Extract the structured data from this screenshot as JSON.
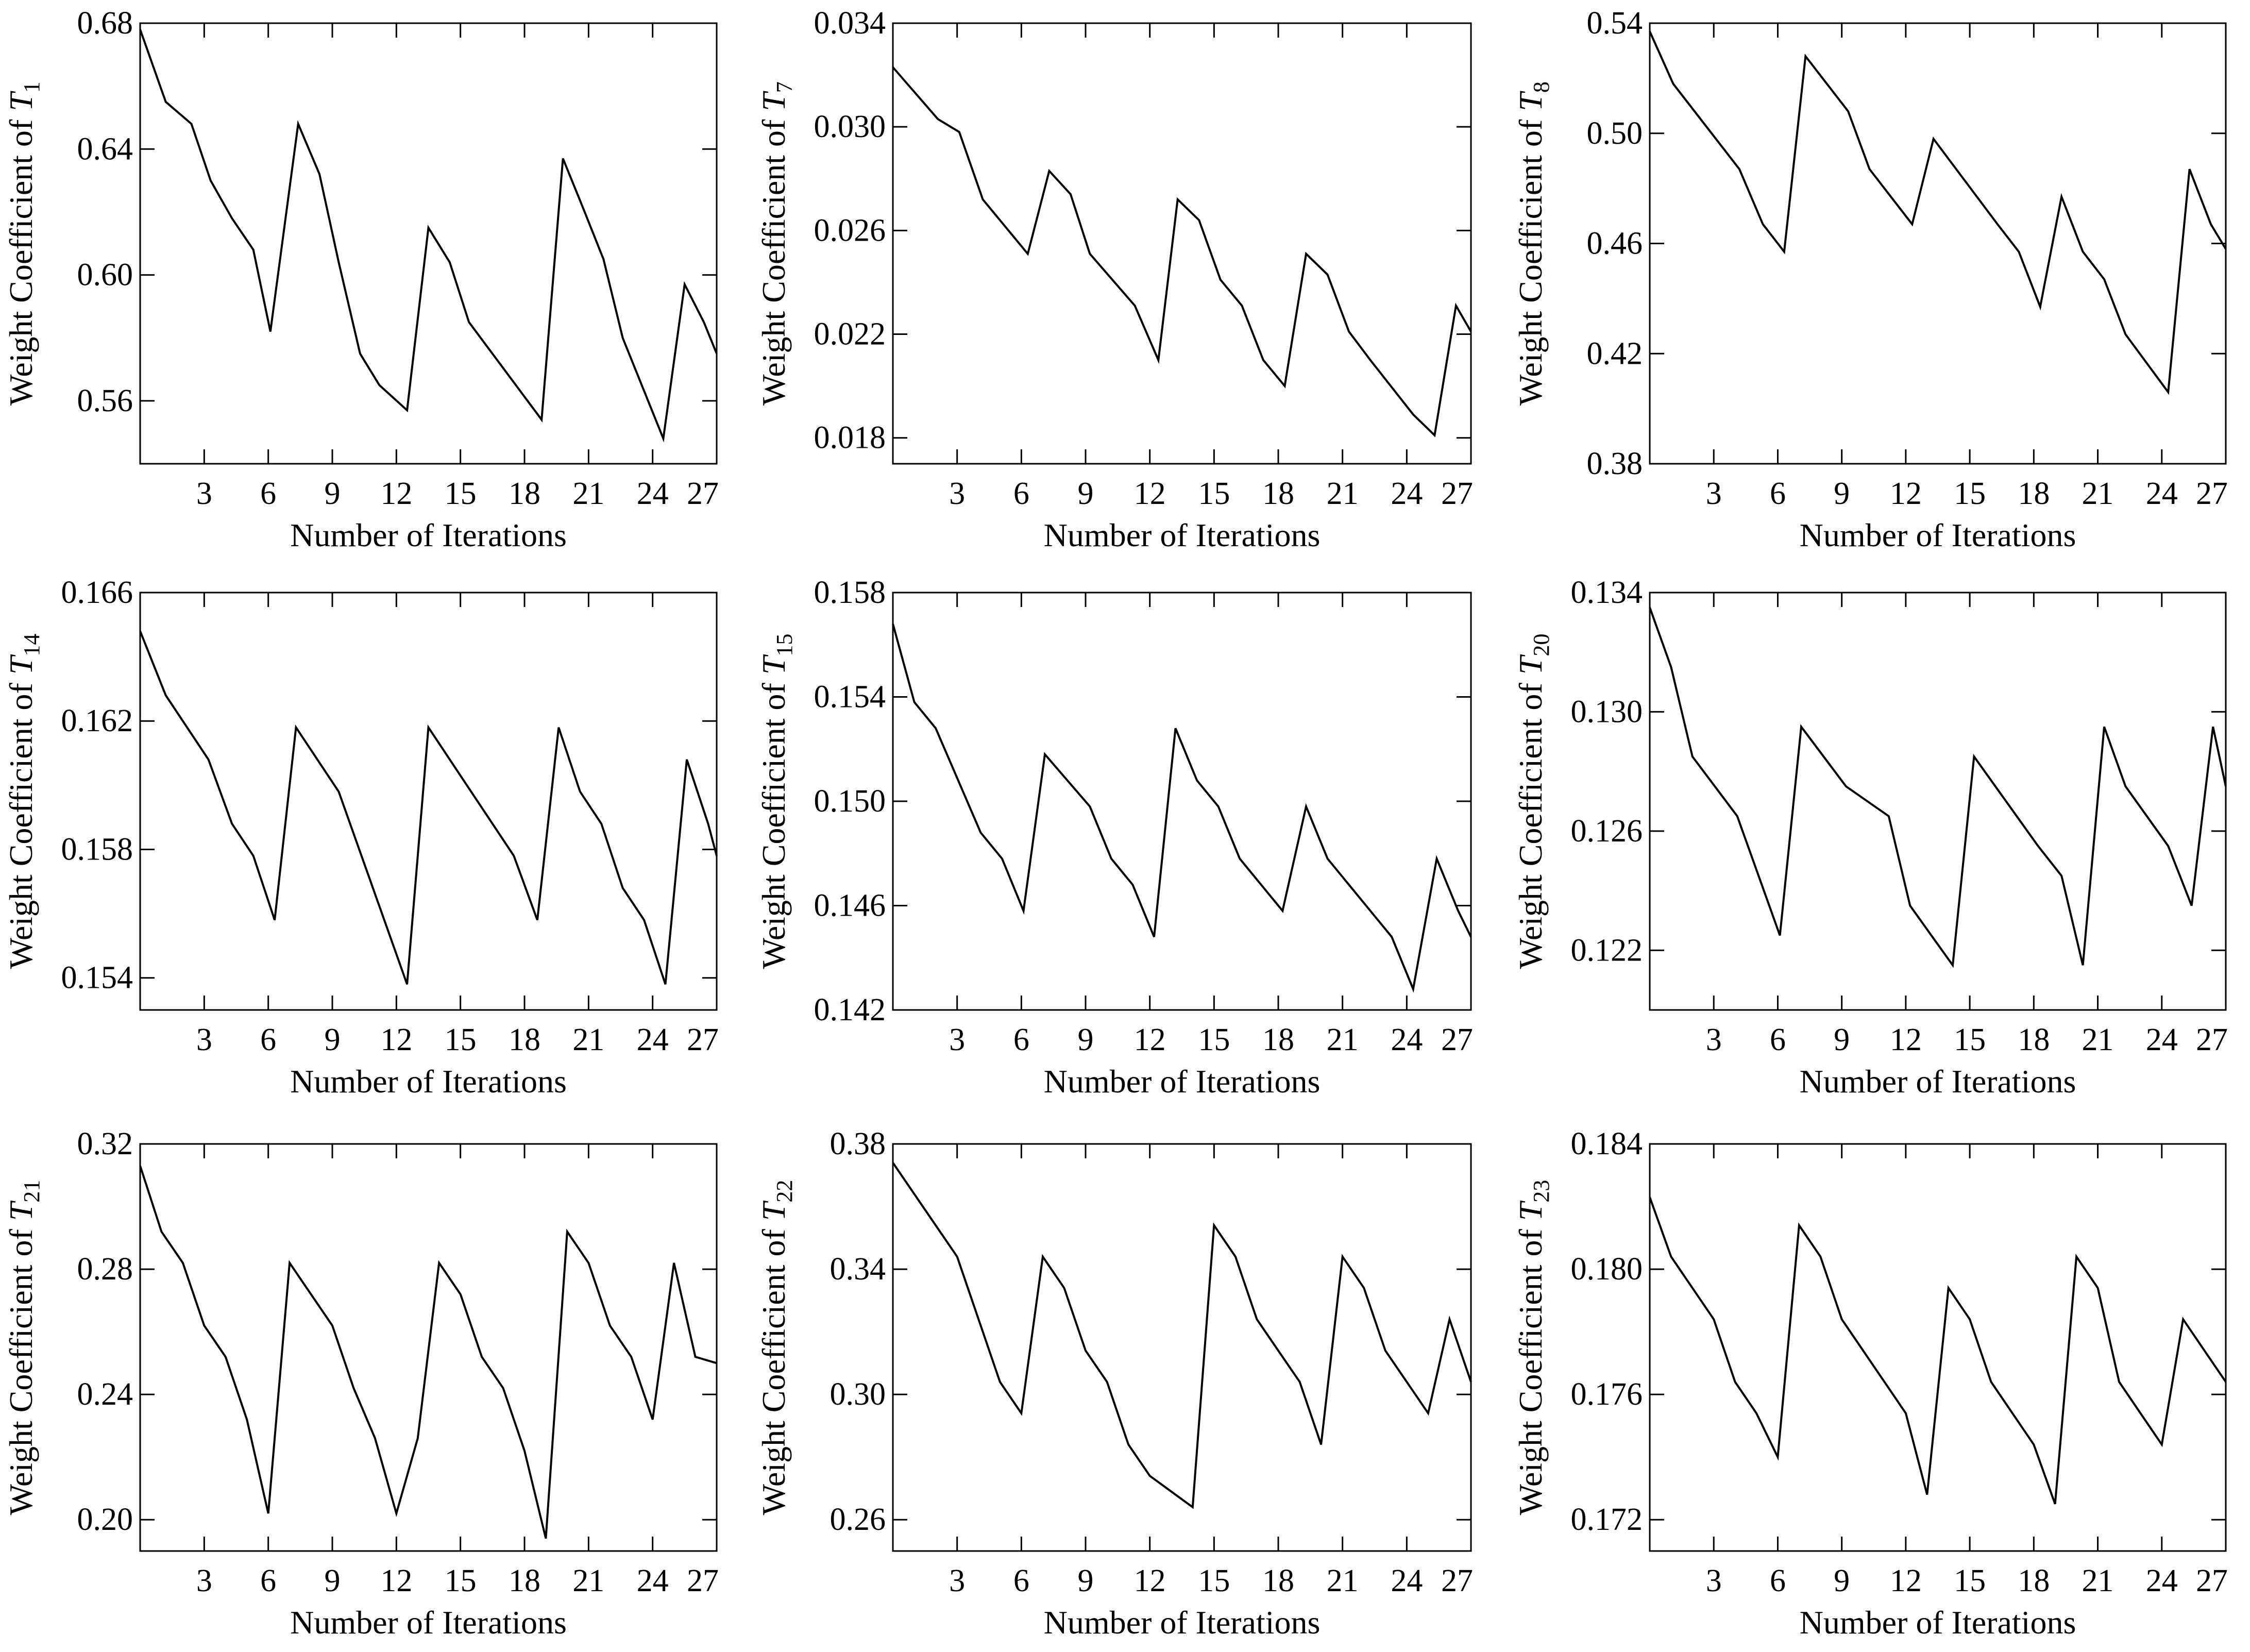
{
  "chart_data": [
    {
      "type": "line",
      "title": "",
      "xlabel": "Number of Iterations",
      "ylabel": "Weight Coefficient of ",
      "ylabel_var": "T",
      "ylabel_sub": "1",
      "xlim": [
        0,
        27
      ],
      "ylim": [
        0.54,
        0.68
      ],
      "x_ticks": [
        3,
        6,
        9,
        12,
        15,
        18,
        21,
        24,
        27
      ],
      "y_ticks": [
        0.56,
        0.6,
        0.64,
        0.68
      ],
      "y_tick_labels": [
        "0.56",
        "0.60",
        "0.64",
        "0.68"
      ],
      "x": [
        0,
        1.2,
        2.4,
        3.3,
        4.3,
        5.3,
        6.1,
        7.4,
        8.4,
        9.3,
        10.3,
        11.2,
        12.5,
        13.5,
        14.5,
        15.4,
        18.8,
        19.8,
        20.7,
        21.7,
        22.6,
        24.5,
        25.5,
        26.4,
        27
      ],
      "series": [
        {
          "name": "T1",
          "values": [
            0.678,
            0.655,
            0.648,
            0.63,
            0.618,
            0.608,
            0.582,
            0.648,
            0.632,
            0.604,
            0.575,
            0.565,
            0.557,
            0.615,
            0.604,
            0.585,
            0.554,
            0.637,
            0.622,
            0.605,
            0.58,
            0.548,
            0.597,
            0.585,
            0.575
          ]
        }
      ]
    },
    {
      "type": "line",
      "title": "",
      "xlabel": "Number of Iterations",
      "ylabel": "Weight Coefficient of ",
      "ylabel_var": "T",
      "ylabel_sub": "7",
      "xlim": [
        0,
        27
      ],
      "ylim": [
        0.017,
        0.034
      ],
      "x_ticks": [
        3,
        6,
        9,
        12,
        15,
        18,
        21,
        24,
        27
      ],
      "y_ticks": [
        0.018,
        0.022,
        0.026,
        0.03,
        0.034
      ],
      "y_tick_labels": [
        "0.018",
        "0.022",
        "0.026",
        "0.030",
        "0.034"
      ],
      "x": [
        0,
        2.1,
        3.1,
        4.2,
        6.3,
        7.3,
        8.3,
        9.2,
        11.3,
        12.4,
        13.3,
        14.3,
        15.3,
        16.3,
        17.3,
        18.3,
        19.3,
        20.3,
        21.3,
        22.3,
        24.3,
        25.3,
        26.3,
        27
      ],
      "series": [
        {
          "name": "T7",
          "values": [
            0.0323,
            0.0303,
            0.0298,
            0.0272,
            0.0251,
            0.0283,
            0.0274,
            0.0251,
            0.0231,
            0.021,
            0.0272,
            0.0264,
            0.0241,
            0.0231,
            0.021,
            0.02,
            0.0251,
            0.0243,
            0.0221,
            0.021,
            0.0189,
            0.0181,
            0.0231,
            0.0221
          ]
        }
      ]
    },
    {
      "type": "line",
      "title": "",
      "xlabel": "Number of Iterations",
      "ylabel": "Weight Coefficient of ",
      "ylabel_var": "T",
      "ylabel_sub": "8",
      "xlim": [
        0,
        27
      ],
      "ylim": [
        0.38,
        0.54
      ],
      "x_ticks": [
        3,
        6,
        9,
        12,
        15,
        18,
        21,
        24,
        27
      ],
      "y_ticks": [
        0.38,
        0.42,
        0.46,
        0.5,
        0.54
      ],
      "y_tick_labels": [
        "0.38",
        "0.42",
        "0.46",
        "0.50",
        "0.54"
      ],
      "x": [
        0,
        1.1,
        4.2,
        5.3,
        6.3,
        7.3,
        9.3,
        10.3,
        12.3,
        13.3,
        16.3,
        17.3,
        18.3,
        19.3,
        20.3,
        21.3,
        22.3,
        24.3,
        25.3,
        26.3,
        27
      ],
      "series": [
        {
          "name": "T8",
          "values": [
            0.537,
            0.518,
            0.487,
            0.467,
            0.457,
            0.528,
            0.508,
            0.487,
            0.467,
            0.498,
            0.467,
            0.457,
            0.437,
            0.477,
            0.457,
            0.447,
            0.427,
            0.406,
            0.487,
            0.467,
            0.458
          ]
        }
      ]
    },
    {
      "type": "line",
      "title": "",
      "xlabel": "Number of Iterations",
      "ylabel": "Weight Coefficient of ",
      "ylabel_var": "T",
      "ylabel_sub": "14",
      "xlim": [
        0,
        27
      ],
      "ylim": [
        0.153,
        0.166
      ],
      "x_ticks": [
        3,
        6,
        9,
        12,
        15,
        18,
        21,
        24,
        27
      ],
      "y_ticks": [
        0.154,
        0.158,
        0.162,
        0.166
      ],
      "y_tick_labels": [
        "0.154",
        "0.158",
        "0.162",
        "0.166"
      ],
      "x": [
        0,
        1.2,
        3.2,
        4.3,
        5.3,
        6.3,
        7.3,
        9.3,
        12.5,
        13.5,
        17.5,
        18.6,
        19.6,
        20.6,
        21.6,
        22.6,
        23.6,
        24.6,
        25.6,
        26.6,
        27
      ],
      "series": [
        {
          "name": "T14",
          "values": [
            0.1648,
            0.1628,
            0.1608,
            0.1588,
            0.1578,
            0.1558,
            0.1618,
            0.1598,
            0.1538,
            0.1618,
            0.1578,
            0.1558,
            0.1618,
            0.1598,
            0.1588,
            0.1568,
            0.1558,
            0.1538,
            0.1608,
            0.1588,
            0.1578
          ]
        }
      ]
    },
    {
      "type": "line",
      "title": "",
      "xlabel": "Number of Iterations",
      "ylabel": "Weight Coefficient of ",
      "ylabel_var": "T",
      "ylabel_sub": "15",
      "xlim": [
        0,
        27
      ],
      "ylim": [
        0.142,
        0.158
      ],
      "x_ticks": [
        3,
        6,
        9,
        12,
        15,
        18,
        21,
        24,
        27
      ],
      "y_ticks": [
        0.142,
        0.146,
        0.15,
        0.154,
        0.158
      ],
      "y_tick_labels": [
        "0.142",
        "0.146",
        "0.150",
        "0.154",
        "0.158"
      ],
      "x": [
        0,
        1.0,
        2.0,
        4.1,
        5.1,
        6.1,
        7.1,
        9.2,
        10.2,
        11.2,
        12.2,
        13.2,
        14.2,
        15.2,
        16.2,
        18.2,
        19.3,
        20.3,
        23.3,
        24.3,
        25.4,
        26.4,
        27
      ],
      "series": [
        {
          "name": "T15",
          "values": [
            0.1568,
            0.1538,
            0.1528,
            0.1488,
            0.1478,
            0.1458,
            0.1518,
            0.1498,
            0.1478,
            0.1468,
            0.1448,
            0.1528,
            0.1508,
            0.1498,
            0.1478,
            0.1458,
            0.1498,
            0.1478,
            0.1448,
            0.1428,
            0.1478,
            0.1458,
            0.1448
          ]
        }
      ]
    },
    {
      "type": "line",
      "title": "",
      "xlabel": "Number of Iterations",
      "ylabel": "Weight Coefficient of ",
      "ylabel_var": "T",
      "ylabel_sub": "20",
      "xlim": [
        0,
        27
      ],
      "ylim": [
        0.12,
        0.134
      ],
      "x_ticks": [
        3,
        6,
        9,
        12,
        15,
        18,
        21,
        24,
        27
      ],
      "y_ticks": [
        0.122,
        0.126,
        0.13,
        0.134
      ],
      "y_tick_labels": [
        "0.122",
        "0.126",
        "0.130",
        "0.134"
      ],
      "x": [
        0,
        1.0,
        2.0,
        4.1,
        6.1,
        7.1,
        9.2,
        11.2,
        12.2,
        13.2,
        14.2,
        15.2,
        16.2,
        18.2,
        19.3,
        20.3,
        21.3,
        22.3,
        23.3,
        24.3,
        25.4,
        26.4,
        27
      ],
      "series": [
        {
          "name": "T20",
          "values": [
            0.1335,
            0.1315,
            0.1285,
            0.1265,
            0.1225,
            0.1295,
            0.1275,
            0.1265,
            0.1235,
            0.1225,
            0.1215,
            0.1285,
            0.1275,
            0.1255,
            0.1245,
            0.1215,
            0.1295,
            0.1275,
            0.1265,
            0.1255,
            0.1235,
            0.1295,
            0.1275
          ]
        }
      ]
    },
    {
      "type": "line",
      "title": "",
      "xlabel": "Number of Iterations",
      "ylabel": "Weight Coefficient of ",
      "ylabel_var": "T",
      "ylabel_sub": "21",
      "xlim": [
        0,
        27
      ],
      "ylim": [
        0.19,
        0.32
      ],
      "x_ticks": [
        3,
        6,
        9,
        12,
        15,
        18,
        21,
        24,
        27
      ],
      "y_ticks": [
        0.2,
        0.24,
        0.28,
        0.32
      ],
      "y_tick_labels": [
        "0.20",
        "0.24",
        "0.28",
        "0.32"
      ],
      "x": [
        0,
        1.0,
        2.0,
        3.0,
        4.0,
        5.0,
        6.0,
        7.0,
        9.0,
        10.0,
        11.0,
        12.0,
        13.0,
        14.0,
        15.0,
        16.0,
        17.0,
        18.0,
        19.0,
        20.0,
        21.0,
        22.0,
        23.0,
        24.0,
        25.0,
        26.0,
        27
      ],
      "series": [
        {
          "name": "T21",
          "values": [
            0.313,
            0.292,
            0.282,
            0.262,
            0.252,
            0.232,
            0.202,
            0.282,
            0.262,
            0.242,
            0.226,
            0.202,
            0.226,
            0.282,
            0.272,
            0.252,
            0.242,
            0.222,
            0.194,
            0.292,
            0.282,
            0.262,
            0.252,
            0.232,
            0.282,
            0.252,
            0.25
          ]
        }
      ]
    },
    {
      "type": "line",
      "title": "",
      "xlabel": "Number of Iterations",
      "ylabel": "Weight Coefficient of ",
      "ylabel_var": "T",
      "ylabel_sub": "22",
      "xlim": [
        0,
        27
      ],
      "ylim": [
        0.25,
        0.38
      ],
      "x_ticks": [
        3,
        6,
        9,
        12,
        15,
        18,
        21,
        24,
        27
      ],
      "y_ticks": [
        0.26,
        0.3,
        0.34,
        0.38
      ],
      "y_tick_labels": [
        "0.26",
        "0.30",
        "0.34",
        "0.38"
      ],
      "x": [
        0,
        3.0,
        5.0,
        6.0,
        7.0,
        8.0,
        9.0,
        10.0,
        11.0,
        12.0,
        14.0,
        15.0,
        16.0,
        17.0,
        18.0,
        19.0,
        20.0,
        21.0,
        22.0,
        23.0,
        24.0,
        25.0,
        26.0,
        27
      ],
      "series": [
        {
          "name": "T22",
          "values": [
            0.374,
            0.344,
            0.304,
            0.294,
            0.344,
            0.334,
            0.314,
            0.304,
            0.284,
            0.274,
            0.264,
            0.354,
            0.344,
            0.324,
            0.314,
            0.304,
            0.284,
            0.344,
            0.334,
            0.314,
            0.304,
            0.294,
            0.324,
            0.304
          ]
        }
      ]
    },
    {
      "type": "line",
      "title": "",
      "xlabel": "Number of Iterations",
      "ylabel": "Weight Coefficient of ",
      "ylabel_var": "T",
      "ylabel_sub": "23",
      "xlim": [
        0,
        27
      ],
      "ylim": [
        0.171,
        0.184
      ],
      "x_ticks": [
        3,
        6,
        9,
        12,
        15,
        18,
        21,
        24,
        27
      ],
      "y_ticks": [
        0.172,
        0.176,
        0.18,
        0.184
      ],
      "y_tick_labels": [
        "0.172",
        "0.176",
        "0.180",
        "0.184"
      ],
      "x": [
        0,
        1.0,
        3.0,
        4.0,
        5.0,
        6.0,
        7.0,
        8.0,
        9.0,
        12.0,
        13.0,
        14.0,
        15.0,
        16.0,
        18.0,
        19.0,
        20.0,
        21.0,
        22.0,
        24.0,
        25.0,
        26.0,
        27
      ],
      "series": [
        {
          "name": "T23",
          "values": [
            0.1823,
            0.1804,
            0.1784,
            0.1764,
            0.1754,
            0.174,
            0.1814,
            0.1804,
            0.1784,
            0.1754,
            0.1728,
            0.1794,
            0.1784,
            0.1764,
            0.1744,
            0.1725,
            0.1804,
            0.1794,
            0.1764,
            0.1744,
            0.1784,
            0.1774,
            0.1764
          ]
        }
      ]
    }
  ]
}
